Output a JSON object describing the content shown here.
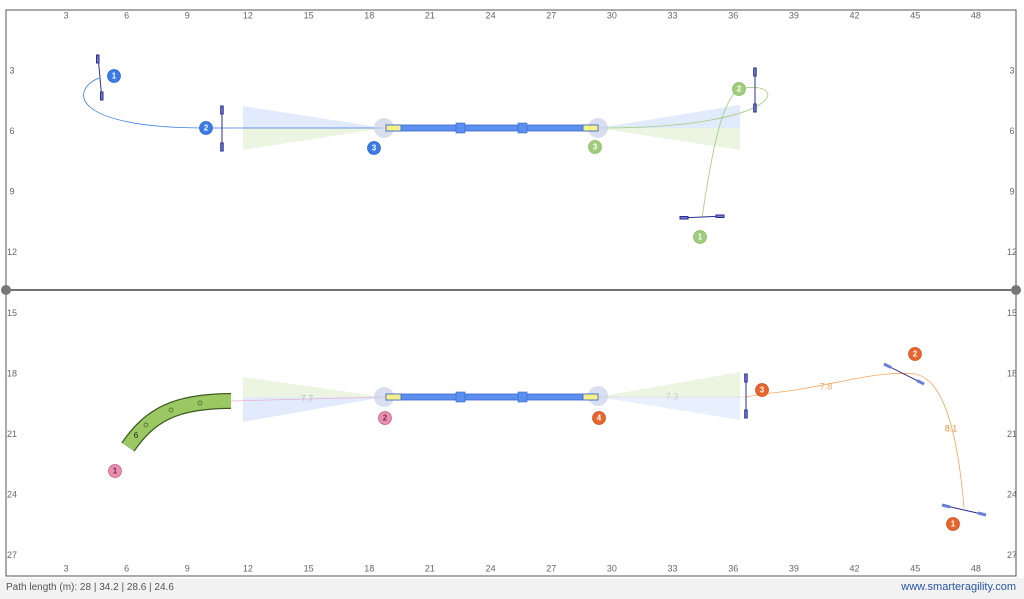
{
  "axes": {
    "x_ticks": [
      3,
      6,
      9,
      12,
      15,
      18,
      21,
      24,
      27,
      30,
      33,
      36,
      39,
      42,
      45,
      48
    ],
    "y_ticks": [
      3,
      6,
      9,
      12,
      15,
      18,
      21,
      24,
      27
    ]
  },
  "handlers": [
    {
      "color": "#3b7be6",
      "markers": [
        "1",
        "2",
        "3"
      ]
    },
    {
      "color": "#9fcd7c",
      "markers": [
        "1",
        "2",
        "3"
      ]
    },
    {
      "color": "#e98fb2",
      "markers": [
        "1",
        "2"
      ]
    },
    {
      "color": "#e8652d",
      "markers": [
        "1",
        "2",
        "3",
        "4"
      ]
    }
  ],
  "distances": [
    "7.7",
    "7.3",
    "7.8",
    "8.1"
  ],
  "tunnel_label": "6",
  "footer": {
    "path_length": "Path length (m): 28 | 34.2 | 28.6 | 24.6",
    "site": "www.smarteragility.com"
  }
}
